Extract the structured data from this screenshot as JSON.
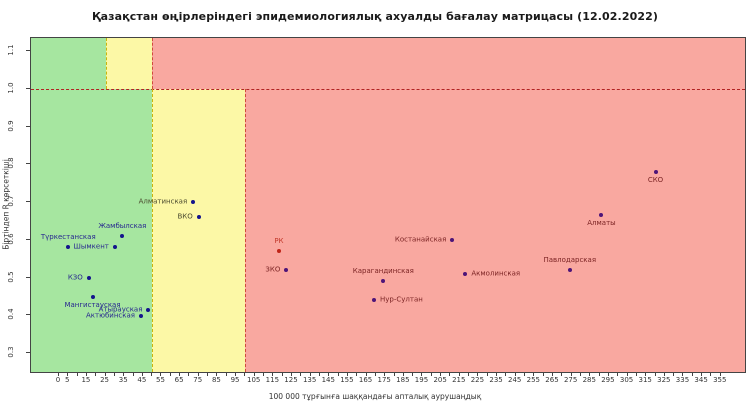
{
  "title": "Қазақстан өңірлеріндегі эпидемиологиялық ахуалды бағалау матрицасы  (12.02.2022)",
  "chart_data": {
    "type": "scatter",
    "title": "Қазақстан өңірлеріндегі эпидемиологиялық ахуалды бағалау матрицасы  (12.02.2022)",
    "xlabel": "100 000 тұрғынға шаққандағы апталық аурушаңдық",
    "ylabel": "Біртіндеп R көрсеткіші",
    "xlim": [
      -15,
      368
    ],
    "ylim": [
      0.25,
      1.135
    ],
    "grid": false,
    "x_tick_step": 5,
    "x_tick_min": 0,
    "x_tick_max": 355,
    "x_tick_labels": [
      "0",
      "5",
      "15",
      "25",
      "35",
      "45",
      "55",
      "65",
      "75",
      "85",
      "95",
      "105",
      "115",
      "125",
      "135",
      "145",
      "155",
      "165",
      "175",
      "185",
      "195",
      "205",
      "215",
      "225",
      "235",
      "245",
      "255",
      "265",
      "275",
      "285",
      "295",
      "305",
      "315",
      "325",
      "335",
      "345",
      "355"
    ],
    "y_tick_labels": [
      "0.3",
      "0.4",
      "0.5",
      "0.6",
      "0.7",
      "0.8",
      "0.9",
      "1.0",
      "1.1"
    ],
    "colors": {
      "green_zone": "#a6e6a0",
      "yellow_zone": "#fcf8a6",
      "red_zone": "#f9a8a0",
      "r_threshold_line": "#b22222",
      "yellow_border": "#c9b50a",
      "red_border": "#d04a3a",
      "point_navy": "#14148c",
      "point_red_zone": "#4d1478",
      "rk_accent": "#c3392b"
    },
    "zones": [
      {
        "name": "zone-green-main",
        "color_key": "green_zone",
        "x0": -15,
        "x1": 50,
        "y0": 0.25,
        "y1": 1.0
      },
      {
        "name": "zone-green-top",
        "color_key": "green_zone",
        "x0": -15,
        "x1": 25,
        "y0": 1.0,
        "y1": 1.135
      },
      {
        "name": "zone-yellow-top",
        "color_key": "yellow_zone",
        "x0": 25,
        "x1": 50,
        "y0": 1.0,
        "y1": 1.135
      },
      {
        "name": "zone-yellow-main",
        "color_key": "yellow_zone",
        "x0": 50,
        "x1": 100,
        "y0": 0.25,
        "y1": 1.0
      },
      {
        "name": "zone-red-top",
        "color_key": "red_zone",
        "x0": 50,
        "x1": 368,
        "y0": 1.0,
        "y1": 1.135
      },
      {
        "name": "zone-red-main",
        "color_key": "red_zone",
        "x0": 100,
        "x1": 368,
        "y0": 0.25,
        "y1": 1.0
      }
    ],
    "threshold_lines": [
      {
        "name": "r-threshold-line",
        "orient": "h",
        "y": 1.0,
        "x0": -15,
        "x1": 368,
        "color_key": "r_threshold_line"
      },
      {
        "name": "green-yellow-top-border",
        "orient": "v",
        "x": 25,
        "y0": 1.0,
        "y1": 1.135,
        "color_key": "yellow_border"
      },
      {
        "name": "yellow-red-top-border",
        "orient": "v",
        "x": 50,
        "y0": 1.0,
        "y1": 1.135,
        "color_key": "red_border"
      },
      {
        "name": "green-yellow-border",
        "orient": "v",
        "x": 50,
        "y0": 0.25,
        "y1": 1.0,
        "color_key": "yellow_border"
      },
      {
        "name": "yellow-red-border",
        "orient": "v",
        "x": 100,
        "y0": 0.25,
        "y1": 1.0,
        "color_key": "red_border"
      }
    ],
    "points": [
      {
        "name": "Түркестанская",
        "x": 5,
        "y": 0.58,
        "label_pos": "above",
        "zone": "green"
      },
      {
        "name": "Жамбылская",
        "x": 34,
        "y": 0.61,
        "label_pos": "above",
        "zone": "green"
      },
      {
        "name": "Шымкент",
        "x": 30,
        "y": 0.58,
        "label_pos": "left",
        "zone": "green"
      },
      {
        "name": "КЗО",
        "x": 16,
        "y": 0.5,
        "label_pos": "left",
        "zone": "green"
      },
      {
        "name": "Мангистауская",
        "x": 18,
        "y": 0.45,
        "label_pos": "below",
        "zone": "green"
      },
      {
        "name": "Атырауская",
        "x": 48,
        "y": 0.415,
        "label_pos": "left",
        "zone": "green"
      },
      {
        "name": "Актюбинская",
        "x": 44,
        "y": 0.398,
        "label_pos": "left",
        "zone": "green"
      },
      {
        "name": "Алматинская",
        "x": 72,
        "y": 0.7,
        "label_pos": "left",
        "zone": "yellow"
      },
      {
        "name": "ВКО",
        "x": 75,
        "y": 0.66,
        "label_pos": "left",
        "zone": "yellow"
      },
      {
        "name": "РК",
        "x": 118,
        "y": 0.57,
        "label_pos": "above",
        "zone": "rk"
      },
      {
        "name": "ЗКО",
        "x": 122,
        "y": 0.52,
        "label_pos": "left",
        "zone": "red"
      },
      {
        "name": "Карагандинская",
        "x": 174,
        "y": 0.49,
        "label_pos": "above",
        "zone": "red"
      },
      {
        "name": "Нур-Султан",
        "x": 169,
        "y": 0.44,
        "label_pos": "right",
        "zone": "red"
      },
      {
        "name": "Костанайская",
        "x": 211,
        "y": 0.6,
        "label_pos": "left",
        "zone": "red"
      },
      {
        "name": "Акмолинская",
        "x": 218,
        "y": 0.51,
        "label_pos": "right",
        "zone": "red"
      },
      {
        "name": "Павлодарская",
        "x": 274,
        "y": 0.52,
        "label_pos": "above",
        "zone": "red"
      },
      {
        "name": "Алматы",
        "x": 291,
        "y": 0.665,
        "label_pos": "below",
        "zone": "red"
      },
      {
        "name": "СКО",
        "x": 320,
        "y": 0.78,
        "label_pos": "below",
        "zone": "red"
      }
    ]
  }
}
